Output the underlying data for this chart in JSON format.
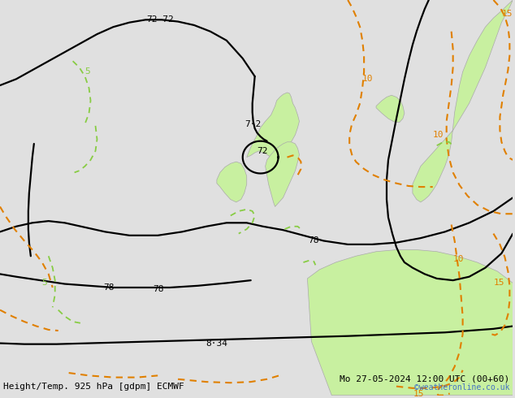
{
  "title_left": "Height/Temp. 925 hPa [gdpm] ECMWF",
  "title_right": "Mo 27-05-2024 12:00 UTC (00+60)",
  "copyright": "©weatheronline.co.uk",
  "bg_color": "#e0e0e0",
  "land_color": "#c8f0a0",
  "coast_color": "#aaaaaa",
  "contour_black": "#000000",
  "contour_orange": "#e08000",
  "contour_green": "#88cc44",
  "font_size_labels": 8,
  "font_size_bottom": 8,
  "font_size_copyright": 7,
  "coast_lw": 0.5,
  "black_lw": 1.6,
  "orange_lw": 1.5,
  "green_lw": 1.3
}
